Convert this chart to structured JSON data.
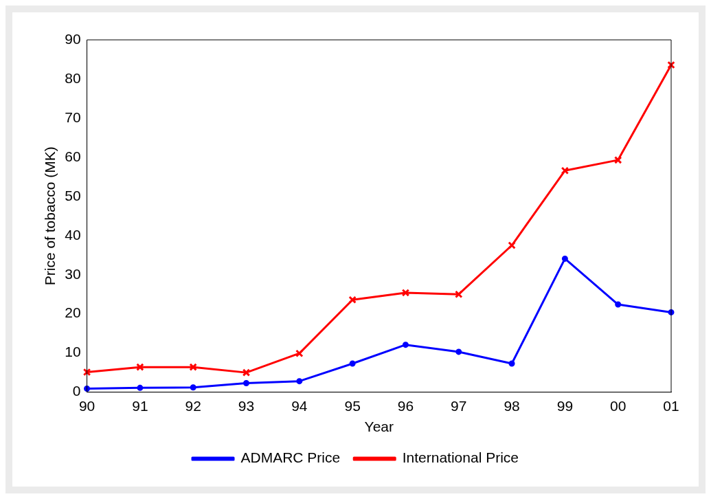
{
  "chart_data": {
    "type": "line",
    "xlabel": "Year",
    "ylabel": "Price of tobacco (MK)",
    "categories": [
      "90",
      "91",
      "92",
      "93",
      "94",
      "95",
      "96",
      "97",
      "98",
      "99",
      "00",
      "01"
    ],
    "series": [
      {
        "name": "ADMARC Price",
        "color": "#0000ff",
        "marker": "circle",
        "values": [
          0.9,
          1.1,
          1.2,
          2.3,
          2.8,
          7.3,
          12.1,
          10.3,
          7.3,
          34.1,
          22.4,
          20.4
        ]
      },
      {
        "name": "International Price",
        "color": "#ff0000",
        "marker": "cross",
        "values": [
          5.1,
          6.4,
          6.4,
          5.0,
          9.9,
          23.6,
          25.4,
          25.0,
          37.5,
          56.6,
          59.3,
          83.6
        ]
      }
    ],
    "ylim": [
      0,
      90
    ],
    "yticks": [
      0,
      10,
      20,
      30,
      40,
      50,
      60,
      70,
      80,
      90
    ],
    "grid": false,
    "legend": "bottom",
    "line_style": "solid"
  }
}
